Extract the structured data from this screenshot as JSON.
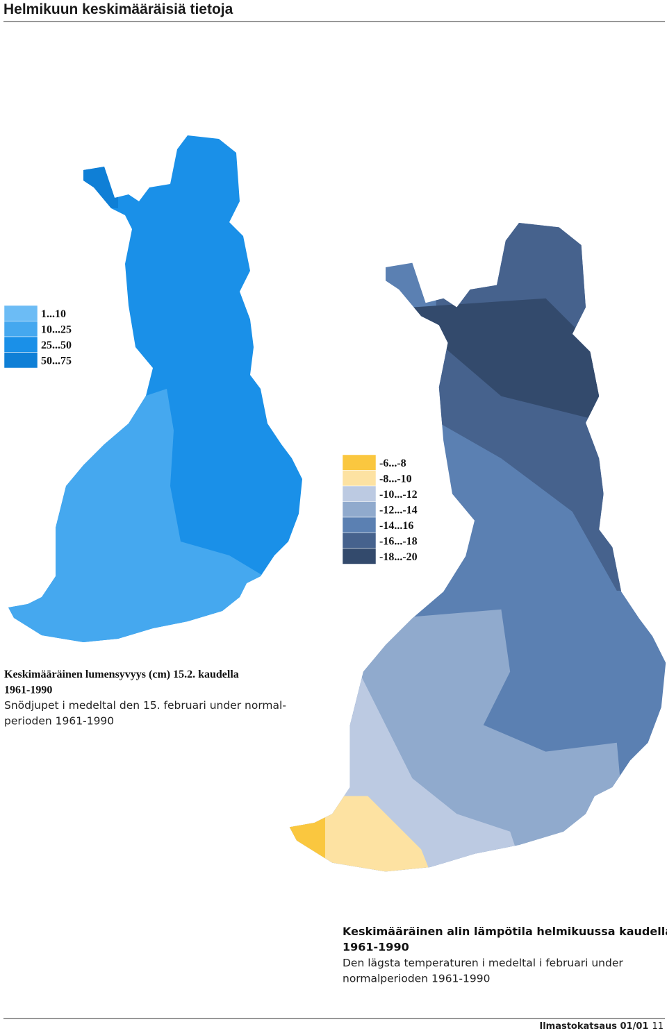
{
  "header": {
    "title": "Helmikuun keskimääräisiä tietoja"
  },
  "maps": [
    {
      "legend": [
        {
          "label": "1...10",
          "color": "#6cbcf5"
        },
        {
          "label": "10...25",
          "color": "#45a8ef"
        },
        {
          "label": "25...50",
          "color": "#1a90e8"
        },
        {
          "label": "50...75",
          "color": "#0f7fd6"
        }
      ],
      "caption": {
        "title": [
          "Keskimääräinen  lumensyvyys (cm) 15.2. kaudella",
          "1961-1990"
        ],
        "subtitle": [
          "Snödjupet i medeltal den 15. februari under normal-",
          "perioden 1961-1990"
        ]
      }
    },
    {
      "legend": [
        {
          "label": "-6...-8",
          "color": "#fac73f"
        },
        {
          "label": "-8...-10",
          "color": "#fde2a2"
        },
        {
          "label": "-10...-12",
          "color": "#bccae2"
        },
        {
          "label": "-12...-14",
          "color": "#90aacd"
        },
        {
          "label": "-14...16",
          "color": "#5b80b2"
        },
        {
          "label": "-16...-18",
          "color": "#46628d"
        },
        {
          "label": "-18...-20",
          "color": "#334a6c"
        }
      ],
      "caption": {
        "title": [
          "Keskimääräinen alin lämpötila helmikuussa kaudella",
          "1961-1990"
        ],
        "subtitle": [
          "Den lägsta temperaturen i medeltal i februari under",
          "normalperioden 1961-1990"
        ]
      }
    }
  ],
  "footer": {
    "publication": "Ilmastokatsaus 01/01",
    "page": "11"
  }
}
